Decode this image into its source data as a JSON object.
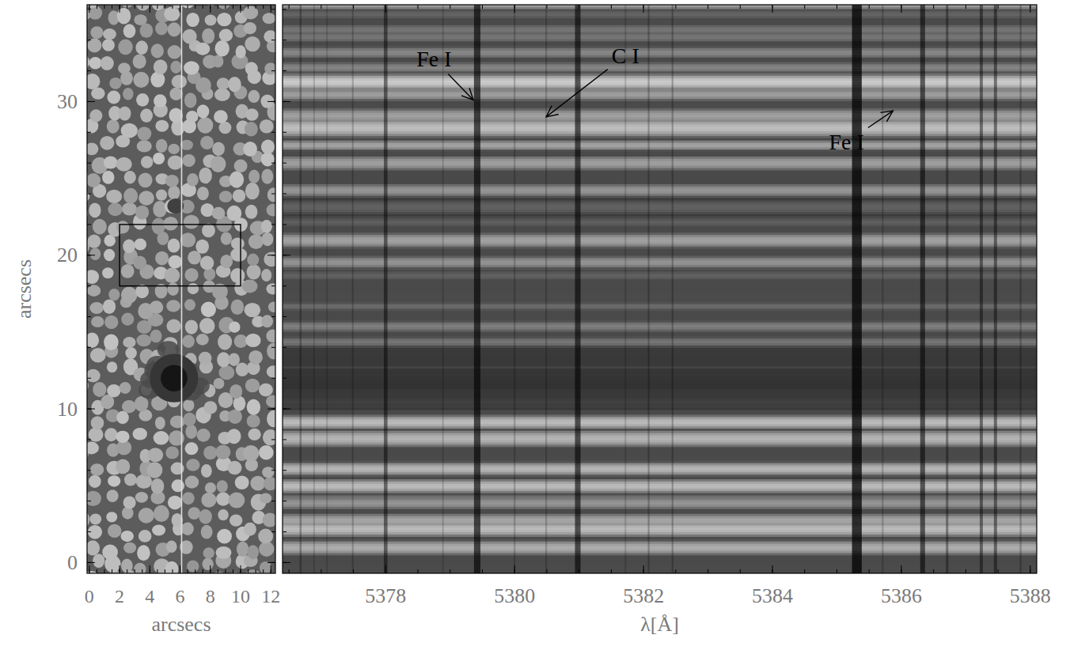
{
  "chart_data": [
    {
      "type": "image",
      "xlabel": "arcsecs",
      "ylabel": "arcsecs",
      "xlim": [
        -0.15,
        12.3
      ],
      "ylim": [
        -0.7,
        36.3
      ],
      "xticks": [
        0,
        2,
        4,
        6,
        8,
        10,
        12
      ],
      "yticks": [
        0,
        10,
        20,
        30
      ],
      "slit_x": 6.1,
      "box": {
        "x": [
          2,
          10
        ],
        "y": [
          18,
          22
        ]
      },
      "sunspot": {
        "x": 5.6,
        "y": 12,
        "radius": 1.6
      },
      "pore": {
        "x": 5.7,
        "y": 23.2,
        "radius": 0.55
      }
    },
    {
      "type": "spectrogram",
      "xlabel": "λ[Å]",
      "xlim": [
        5376.4,
        5388.1
      ],
      "ylim": [
        -0.7,
        36.3
      ],
      "xticks": [
        5378,
        5380,
        5382,
        5384,
        5386,
        5388
      ],
      "yticks": [
        0,
        10,
        20,
        30
      ],
      "tick_labels": "x",
      "lines": {
        "wavelength": [
          5376.68,
          5376.89,
          5377.09,
          5377.49,
          5378.0,
          5378.89,
          5379.42,
          5380.0,
          5380.49,
          5380.98,
          5381.72,
          5382.08,
          5382.45,
          5385.31,
          5385.71,
          5386.33,
          5386.71,
          5387.24,
          5387.46,
          5387.85
        ],
        "depth": [
          0.35,
          0.2,
          0.2,
          0.25,
          0.6,
          0.2,
          0.8,
          0.25,
          0.25,
          0.75,
          0.2,
          0.3,
          0.3,
          0.95,
          0.25,
          0.7,
          0.45,
          0.55,
          0.55,
          0.3
        ]
      },
      "annotations": [
        {
          "text": "Fe I",
          "xy": [
            5379.36,
            30.1
          ],
          "xytext": [
            5378.75,
            32.75
          ]
        },
        {
          "text": "C I",
          "xy": [
            5380.49,
            29.0
          ],
          "xytext": [
            5381.72,
            33.0
          ]
        },
        {
          "text": "Fe I",
          "xy": [
            5385.87,
            29.4
          ],
          "xytext": [
            5385.15,
            27.35
          ]
        }
      ]
    }
  ]
}
